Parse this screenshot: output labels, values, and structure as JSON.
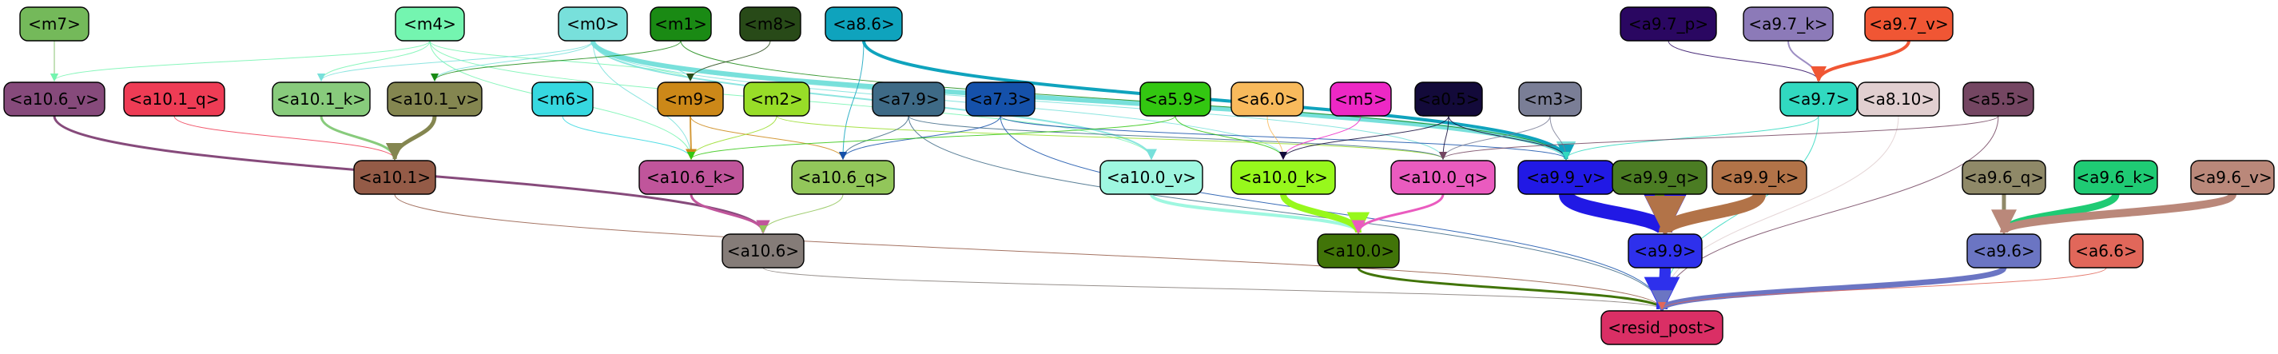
{
  "diagram": {
    "type": "directed-graph",
    "nodes": [
      {
        "id": "m7",
        "label": "<m7>",
        "fill": "#74b95a",
        "text": "#000000"
      },
      {
        "id": "m4",
        "label": "<m4>",
        "fill": "#74f5b0",
        "text": "#000000"
      },
      {
        "id": "m0",
        "label": "<m0>",
        "fill": "#78e0db",
        "text": "#000000"
      },
      {
        "id": "m1",
        "label": "<m1>",
        "fill": "#1a8a14",
        "text": "#000000"
      },
      {
        "id": "m8",
        "label": "<m8>",
        "fill": "#284a18",
        "text": "#000000"
      },
      {
        "id": "a8_6",
        "label": "<a8.6>",
        "fill": "#0fa3bd",
        "text": "#000000"
      },
      {
        "id": "a9_7_p",
        "label": "<a9.7_p>",
        "fill": "#2a0761",
        "text": "#000000"
      },
      {
        "id": "a9_7_k",
        "label": "<a9.7_k>",
        "fill": "#8c7ab8",
        "text": "#000000"
      },
      {
        "id": "a9_7_v",
        "label": "<a9.7_v>",
        "fill": "#f05634",
        "text": "#000000"
      },
      {
        "id": "a10_6_v",
        "label": "<a10.6_v>",
        "fill": "#864a7b",
        "text": "#000000"
      },
      {
        "id": "a10_1_q",
        "label": "<a10.1_q>",
        "fill": "#ee3c55",
        "text": "#000000"
      },
      {
        "id": "a10_1_k",
        "label": "<a10.1_k>",
        "fill": "#88cb7c",
        "text": "#000000"
      },
      {
        "id": "a10_1_v",
        "label": "<a10.1_v>",
        "fill": "#848650",
        "text": "#000000"
      },
      {
        "id": "m6",
        "label": "<m6>",
        "fill": "#36d8e0",
        "text": "#000000"
      },
      {
        "id": "m9",
        "label": "<m9>",
        "fill": "#cc8818",
        "text": "#000000"
      },
      {
        "id": "m2",
        "label": "<m2>",
        "fill": "#98dd28",
        "text": "#000000"
      },
      {
        "id": "a7_9",
        "label": "<a7.9>",
        "fill": "#3e6a86",
        "text": "#000000"
      },
      {
        "id": "a7_3",
        "label": "<a7.3>",
        "fill": "#1551aa",
        "text": "#000000"
      },
      {
        "id": "a5_9",
        "label": "<a5.9>",
        "fill": "#33c711",
        "text": "#000000"
      },
      {
        "id": "a6_0",
        "label": "<a6.0>",
        "fill": "#f8ba5c",
        "text": "#000000"
      },
      {
        "id": "m5",
        "label": "<m5>",
        "fill": "#ed28c5",
        "text": "#000000"
      },
      {
        "id": "a0_5",
        "label": "<a0.5>",
        "fill": "#130a3a",
        "text": "#000000"
      },
      {
        "id": "m3",
        "label": "<m3>",
        "fill": "#7a7e96",
        "text": "#000000"
      },
      {
        "id": "a9_7",
        "label": "<a9.7>",
        "fill": "#31d9c0",
        "text": "#000000"
      },
      {
        "id": "a8_10",
        "label": "<a8.10>",
        "fill": "#e1cfd0",
        "text": "#000000"
      },
      {
        "id": "a5_5",
        "label": "<a5.5>",
        "fill": "#744662",
        "text": "#000000"
      },
      {
        "id": "a10_1",
        "label": "<a10.1>",
        "fill": "#945b47",
        "text": "#000000"
      },
      {
        "id": "a10_6_k",
        "label": "<a10.6_k>",
        "fill": "#c0559b",
        "text": "#000000"
      },
      {
        "id": "a10_6_q",
        "label": "<a10.6_q>",
        "fill": "#92c65a",
        "text": "#000000"
      },
      {
        "id": "a10_0_v",
        "label": "<a10.0_v>",
        "fill": "#9ef7e0",
        "text": "#000000"
      },
      {
        "id": "a10_0_k",
        "label": "<a10.0_k>",
        "fill": "#97f81c",
        "text": "#000000"
      },
      {
        "id": "a10_0_q",
        "label": "<a10.0_q>",
        "fill": "#ea5bbf",
        "text": "#000000"
      },
      {
        "id": "a9_9_v",
        "label": "<a9.9_v>",
        "fill": "#2119e5",
        "text": "#000000"
      },
      {
        "id": "a9_9_q",
        "label": "<a9.9_q>",
        "fill": "#4b7c23",
        "text": "#000000"
      },
      {
        "id": "a9_9_k",
        "label": "<a9.9_k>",
        "fill": "#b27348",
        "text": "#000000"
      },
      {
        "id": "a9_6_q",
        "label": "<a9.6_q>",
        "fill": "#8f8968",
        "text": "#000000"
      },
      {
        "id": "a9_6_k",
        "label": "<a9.6_k>",
        "fill": "#1fcb74",
        "text": "#000000"
      },
      {
        "id": "a9_6_v",
        "label": "<a9.6_v>",
        "fill": "#ba887a",
        "text": "#000000"
      },
      {
        "id": "a10_6",
        "label": "<a10.6>",
        "fill": "#857c78",
        "text": "#000000"
      },
      {
        "id": "a10_0",
        "label": "<a10.0>",
        "fill": "#417408",
        "text": "#000000"
      },
      {
        "id": "a9_9",
        "label": "<a9.9>",
        "fill": "#2e30ec",
        "text": "#000000"
      },
      {
        "id": "a9_6",
        "label": "<a9.6>",
        "fill": "#6b75c3",
        "text": "#000000"
      },
      {
        "id": "a6_6",
        "label": "<a6.6>",
        "fill": "#e1675a",
        "text": "#000000"
      },
      {
        "id": "resid_post",
        "label": "<resid_post>",
        "fill": "#da2f65",
        "text": "#000000"
      }
    ],
    "edges": [
      {
        "from": "m7",
        "to": "a10_6_v",
        "color": "#74b95a",
        "weight": 1
      },
      {
        "from": "m4",
        "to": "a10_1_k",
        "color": "#74f5b0",
        "weight": 1
      },
      {
        "from": "m4",
        "to": "a10_6_v",
        "color": "#74f5b0",
        "weight": 1
      },
      {
        "from": "m4",
        "to": "m9",
        "color": "#74f5b0",
        "weight": 1
      },
      {
        "from": "m4",
        "to": "a10_0_v",
        "color": "#74f5b0",
        "weight": 1
      },
      {
        "from": "m4",
        "to": "a10_6_k",
        "color": "#74f5b0",
        "weight": 1
      },
      {
        "from": "m0",
        "to": "a10_1_k",
        "color": "#78e0db",
        "weight": 1
      },
      {
        "from": "m0",
        "to": "a10_1_v",
        "color": "#78e0db",
        "weight": 1
      },
      {
        "from": "m0",
        "to": "a10_6_k",
        "color": "#78e0db",
        "weight": 1
      },
      {
        "from": "m0",
        "to": "m9",
        "color": "#78e0db",
        "weight": 1
      },
      {
        "from": "m0",
        "to": "a10_0_v",
        "color": "#78e0db",
        "weight": 2
      },
      {
        "from": "m0",
        "to": "a10_0_k",
        "color": "#78e0db",
        "weight": 1
      },
      {
        "from": "m0",
        "to": "a10_0_q",
        "color": "#78e0db",
        "weight": 1
      },
      {
        "from": "m0",
        "to": "a9_9_v",
        "color": "#78e0db",
        "weight": 6
      },
      {
        "from": "m1",
        "to": "a10_1_v",
        "color": "#1a8a14",
        "weight": 1
      },
      {
        "from": "m1",
        "to": "a9_9_v",
        "color": "#1a8a14",
        "weight": 1
      },
      {
        "from": "m8",
        "to": "m9",
        "color": "#284a18",
        "weight": 1
      },
      {
        "from": "a8_6",
        "to": "a10_6_q",
        "color": "#0fa3bd",
        "weight": 1
      },
      {
        "from": "a8_6",
        "to": "a9_9_v",
        "color": "#0fa3bd",
        "weight": 4
      },
      {
        "from": "a9_7_p",
        "to": "a9_7",
        "color": "#2a0761",
        "weight": 1
      },
      {
        "from": "a9_7_k",
        "to": "a9_7",
        "color": "#8c7ab8",
        "weight": 2
      },
      {
        "from": "a9_7_v",
        "to": "a9_7",
        "color": "#f05634",
        "weight": 4
      },
      {
        "from": "a10_6_v",
        "to": "a10_6",
        "color": "#864a7b",
        "weight": 3
      },
      {
        "from": "a10_1_q",
        "to": "a10_1",
        "color": "#ee3c55",
        "weight": 1
      },
      {
        "from": "a10_1_k",
        "to": "a10_1",
        "color": "#88cb7c",
        "weight": 3
      },
      {
        "from": "a10_1_v",
        "to": "a10_1",
        "color": "#848650",
        "weight": 5
      },
      {
        "from": "m6",
        "to": "a10_6_k",
        "color": "#36d8e0",
        "weight": 1
      },
      {
        "from": "m9",
        "to": "a10_6_k",
        "color": "#cc8818",
        "weight": 2
      },
      {
        "from": "m9",
        "to": "a10_6_q",
        "color": "#cc8818",
        "weight": 1
      },
      {
        "from": "m2",
        "to": "a10_6_k",
        "color": "#98dd28",
        "weight": 1
      },
      {
        "from": "m2",
        "to": "a10_0_q",
        "color": "#98dd28",
        "weight": 1
      },
      {
        "from": "a7_9",
        "to": "a10_6_q",
        "color": "#3e6a86",
        "weight": 1
      },
      {
        "from": "a7_9",
        "to": "a10_0_q",
        "color": "#3e6a86",
        "weight": 1
      },
      {
        "from": "a7_9",
        "to": "resid_post",
        "color": "#3e6a86",
        "weight": 1
      },
      {
        "from": "a7_3",
        "to": "a10_6_q",
        "color": "#1551aa",
        "weight": 1
      },
      {
        "from": "a7_3",
        "to": "a9_9_v",
        "color": "#1551aa",
        "weight": 1
      },
      {
        "from": "a7_3",
        "to": "resid_post",
        "color": "#1551aa",
        "weight": 1
      },
      {
        "from": "a5_9",
        "to": "a10_0_k",
        "color": "#33c711",
        "weight": 1
      },
      {
        "from": "a5_9",
        "to": "a10_6_k",
        "color": "#33c711",
        "weight": 1
      },
      {
        "from": "a6_0",
        "to": "a10_0_k",
        "color": "#f8ba5c",
        "weight": 1
      },
      {
        "from": "m5",
        "to": "a10_0_k",
        "color": "#ed28c5",
        "weight": 1
      },
      {
        "from": "a0_5",
        "to": "a10_0_k",
        "color": "#130a3a",
        "weight": 1
      },
      {
        "from": "a0_5",
        "to": "a10_0_q",
        "color": "#130a3a",
        "weight": 1
      },
      {
        "from": "a0_5",
        "to": "a9_9_v",
        "color": "#130a3a",
        "weight": 1
      },
      {
        "from": "m3",
        "to": "a10_0_q",
        "color": "#7a7e96",
        "weight": 1
      },
      {
        "from": "m3",
        "to": "a9_9_v",
        "color": "#7a7e96",
        "weight": 1
      },
      {
        "from": "a9_7",
        "to": "a9_9_v",
        "color": "#31d9c0",
        "weight": 1
      },
      {
        "from": "a9_7",
        "to": "resid_post",
        "color": "#31d9c0",
        "weight": 1
      },
      {
        "from": "a8_10",
        "to": "resid_post",
        "color": "#e1cfd0",
        "weight": 1
      },
      {
        "from": "a5_5",
        "to": "resid_post",
        "color": "#744662",
        "weight": 1
      },
      {
        "from": "a5_5",
        "to": "a10_0_q",
        "color": "#744662",
        "weight": 1
      },
      {
        "from": "a10_1",
        "to": "resid_post",
        "color": "#945b47",
        "weight": 1
      },
      {
        "from": "a10_6_k",
        "to": "a10_6",
        "color": "#c0559b",
        "weight": 3
      },
      {
        "from": "a10_6_q",
        "to": "a10_6",
        "color": "#92c65a",
        "weight": 1
      },
      {
        "from": "a10_0_v",
        "to": "a10_0",
        "color": "#9ef7e0",
        "weight": 4
      },
      {
        "from": "a10_0_k",
        "to": "a10_0",
        "color": "#97f81c",
        "weight": 8
      },
      {
        "from": "a10_0_q",
        "to": "a10_0",
        "color": "#ea5bbf",
        "weight": 3
      },
      {
        "from": "a9_9_v",
        "to": "a9_9",
        "color": "#2119e5",
        "weight": 18
      },
      {
        "from": "a9_9_q",
        "to": "a9_9",
        "color": "#4b7c23",
        "weight": 12
      },
      {
        "from": "a9_9_k",
        "to": "a9_9",
        "color": "#b27348",
        "weight": 16
      },
      {
        "from": "a9_6_q",
        "to": "a9_6",
        "color": "#8f8968",
        "weight": 5
      },
      {
        "from": "a9_6_k",
        "to": "a9_6",
        "color": "#1fcb74",
        "weight": 9
      },
      {
        "from": "a9_6_v",
        "to": "a9_6",
        "color": "#ba887a",
        "weight": 10
      },
      {
        "from": "a10_6",
        "to": "resid_post",
        "color": "#857c78",
        "weight": 1
      },
      {
        "from": "a10_0",
        "to": "resid_post",
        "color": "#417408",
        "weight": 3
      },
      {
        "from": "a9_9",
        "to": "resid_post",
        "color": "#2e30ec",
        "weight": 14
      },
      {
        "from": "a9_6",
        "to": "resid_post",
        "color": "#6b75c3",
        "weight": 7
      },
      {
        "from": "a6_6",
        "to": "resid_post",
        "color": "#e1675a",
        "weight": 1
      }
    ]
  }
}
